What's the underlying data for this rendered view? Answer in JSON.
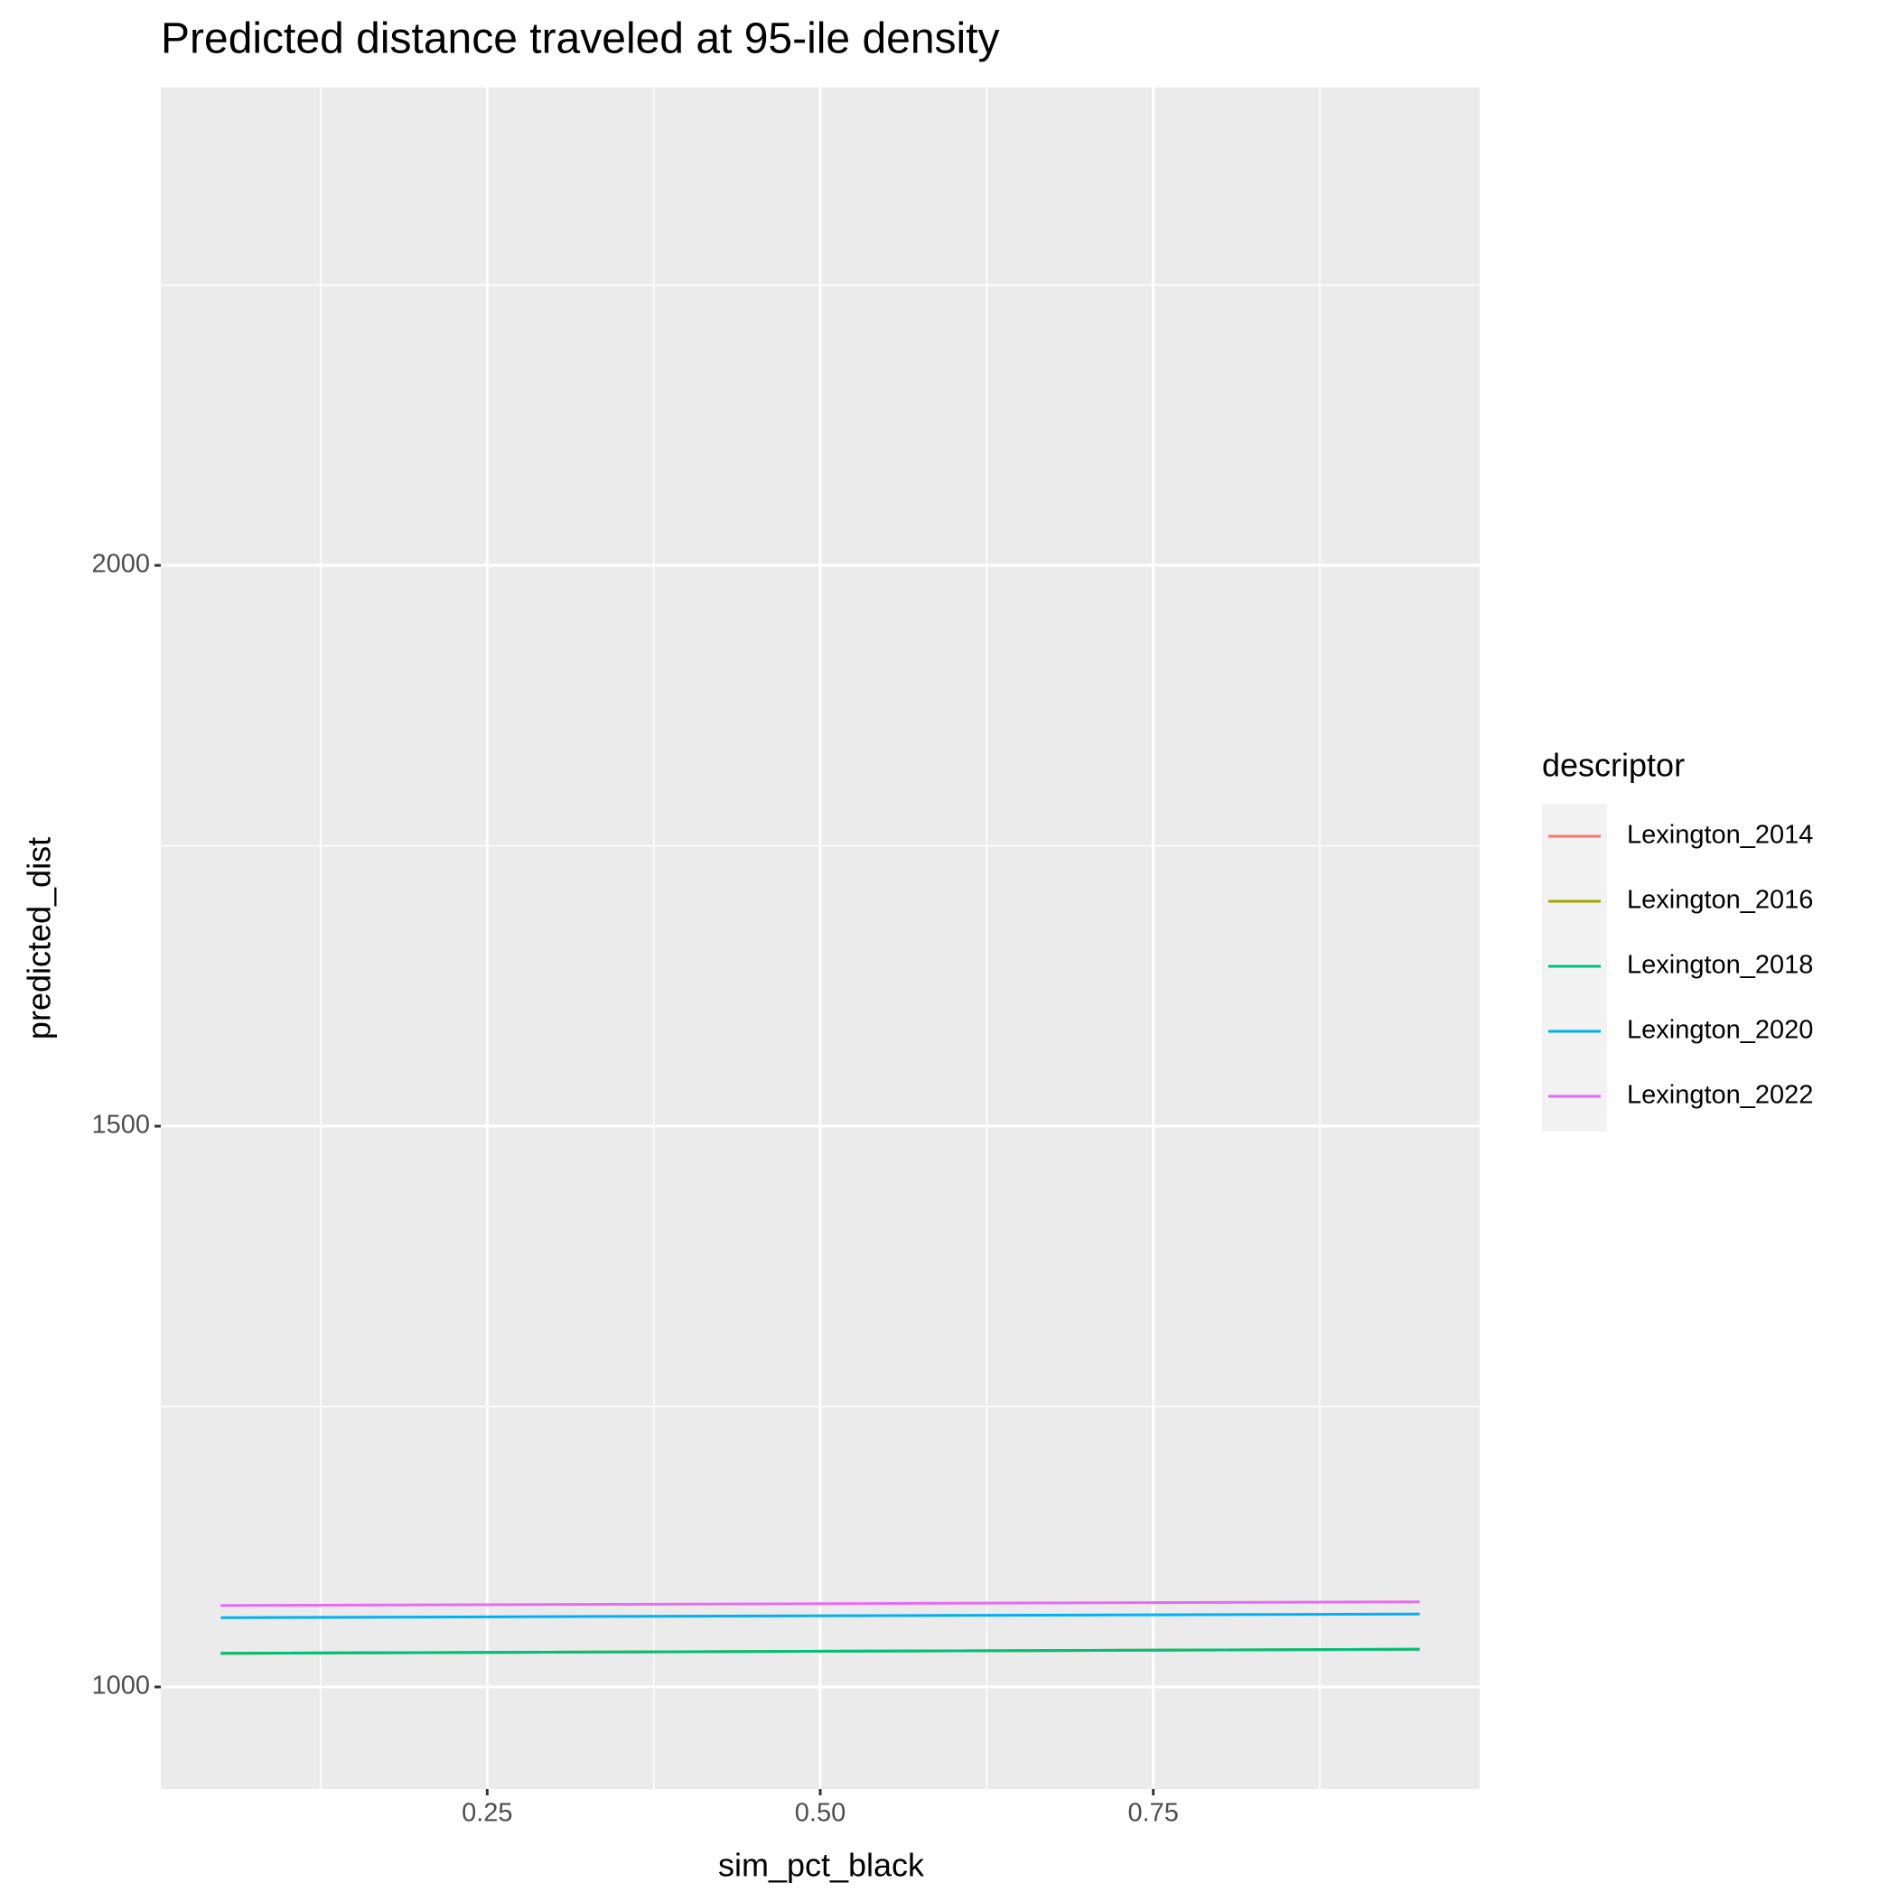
{
  "chart_data": {
    "type": "line",
    "title": "Predicted distance traveled at 95-ile density",
    "x_label": "sim_pct_black",
    "y_label": "predicted_dist",
    "legend_title": "descriptor",
    "x": [
      0.05,
      0.95
    ],
    "series": [
      {
        "name": "Lexington_2014",
        "color": "#F8766D",
        "values": [
          1030,
          1033.6
        ]
      },
      {
        "name": "Lexington_2016",
        "color": "#A3A500",
        "values": [
          1030,
          1033.6
        ]
      },
      {
        "name": "Lexington_2018",
        "color": "#00BF7D",
        "values": [
          1030,
          1033.6
        ]
      },
      {
        "name": "Lexington_2020",
        "color": "#00B0F6",
        "values": [
          1061.8,
          1065
        ]
      },
      {
        "name": "Lexington_2022",
        "color": "#E76BF3",
        "values": [
          1072.6,
          1075.9
        ]
      }
    ],
    "xlim": [
      0.005,
      0.995
    ],
    "ylim": [
      909,
      2426
    ],
    "xticks": [
      {
        "value": 0.25,
        "label": "0.25"
      },
      {
        "value": 0.5,
        "label": "0.50"
      },
      {
        "value": 0.75,
        "label": "0.75"
      }
    ],
    "yticks": [
      1000,
      1500,
      2000
    ],
    "minor_xticks": [
      0.125,
      0.375,
      0.625,
      0.875
    ],
    "minor_yticks": [
      1250,
      1750,
      2250
    ],
    "grid": true,
    "legend_position": "right"
  }
}
